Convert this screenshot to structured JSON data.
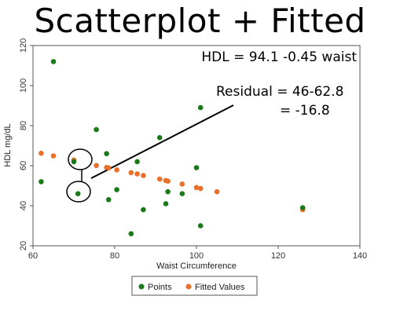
{
  "slide": {
    "title": "Scatterplot + Fitted"
  },
  "annotations": {
    "equation": "HDL = 94.1 -0.45 waist",
    "residual_line1": "Residual = 46-62.8",
    "residual_line2": "= -16.8"
  },
  "colors": {
    "points": "#1a7a1a",
    "fitted": "#e8702a",
    "frame": "#555555"
  },
  "chart_data": {
    "type": "scatter",
    "title": "Scatterplot + Fitted",
    "xlabel": "Waist Circumference",
    "ylabel": "HDL mg/dL",
    "xlim": [
      60,
      140
    ],
    "ylim": [
      20,
      120
    ],
    "xticks": [
      60,
      80,
      100,
      120,
      140
    ],
    "yticks": [
      20,
      40,
      60,
      80,
      100,
      120
    ],
    "grid": false,
    "legend_position": "bottom",
    "series": [
      {
        "name": "Points",
        "x": [
          62,
          65,
          70,
          71,
          75.5,
          78,
          78.5,
          80.5,
          84,
          85.5,
          87,
          91,
          92.5,
          93,
          96.5,
          100,
          101,
          101,
          126
        ],
        "y": [
          52,
          112,
          62,
          46,
          78,
          66,
          43,
          48,
          26,
          62,
          38,
          74,
          41,
          47,
          46,
          59,
          89,
          30,
          39
        ]
      },
      {
        "name": "Fitted Values",
        "x": [
          62,
          65,
          70,
          75.5,
          78,
          78.5,
          80.5,
          84,
          85.5,
          87,
          91,
          92.5,
          93,
          96.5,
          100,
          101,
          105,
          126
        ],
        "y": [
          66.2,
          64.9,
          62.8,
          60.1,
          59.1,
          58.9,
          57.9,
          56.5,
          55.9,
          55.1,
          53.3,
          52.6,
          52.3,
          50.8,
          49.1,
          48.6,
          47,
          38
        ]
      }
    ]
  }
}
